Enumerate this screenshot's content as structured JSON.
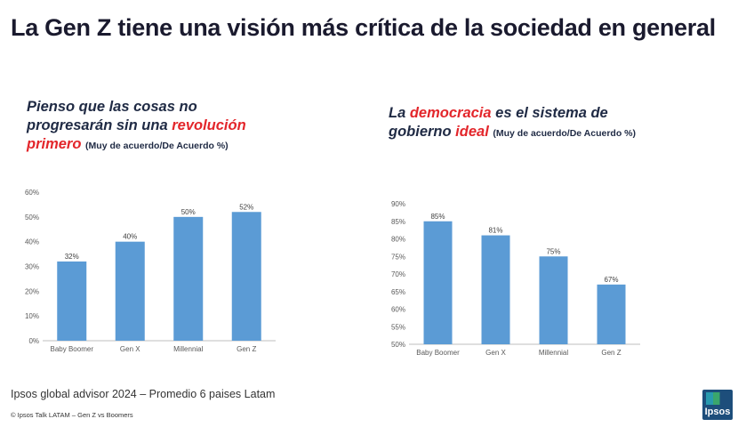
{
  "header": {
    "title": "La Gen Z tiene una visión más crítica de la sociedad en general"
  },
  "charts_meta": [
    {
      "title_parts": [
        {
          "text": "Pienso que las cosas no progresarán sin una ",
          "hl": false
        },
        {
          "text": "revolución primero",
          "hl": true
        },
        {
          "text": " ",
          "hl": false
        }
      ],
      "subtitle": "(Muy de acuerdo/De Acuerdo %)"
    },
    {
      "title_parts": [
        {
          "text": "La ",
          "hl": false
        },
        {
          "text": "democracia",
          "hl": true
        },
        {
          "text": " es el sistema de gobierno ",
          "hl": false
        },
        {
          "text": "ideal",
          "hl": true
        },
        {
          "text": " ",
          "hl": false
        }
      ],
      "subtitle": "(Muy de acuerdo/De Acuerdo %)"
    }
  ],
  "chart_data": [
    {
      "type": "bar",
      "title": "Pienso que las cosas no progresarán sin una revolución primero",
      "categories": [
        "Baby Boomer",
        "Gen X",
        "Millennial",
        "Gen Z"
      ],
      "values": [
        32,
        40,
        50,
        52
      ],
      "data_labels": [
        "32%",
        "40%",
        "50%",
        "52%"
      ],
      "ylim": [
        0,
        60
      ],
      "yticks": [
        0,
        10,
        20,
        30,
        40,
        50,
        60
      ],
      "ytick_labels": [
        "0%",
        "10%",
        "20%",
        "30%",
        "40%",
        "50%",
        "60%"
      ],
      "bar_color": "#5b9bd5",
      "grid": false
    },
    {
      "type": "bar",
      "title": "La democracia es el sistema de gobierno ideal",
      "categories": [
        "Baby Boomer",
        "Gen X",
        "Millennial",
        "Gen Z"
      ],
      "values": [
        85,
        81,
        75,
        67
      ],
      "data_labels": [
        "85%",
        "81%",
        "75%",
        "67%"
      ],
      "ylim": [
        50,
        90
      ],
      "yticks": [
        50,
        55,
        60,
        65,
        70,
        75,
        80,
        85,
        90
      ],
      "ytick_labels": [
        "50%",
        "55%",
        "60%",
        "65%",
        "70%",
        "75%",
        "80%",
        "85%",
        "90%"
      ],
      "bar_color": "#5b9bd5",
      "grid": false
    }
  ],
  "footer": {
    "source": "Ipsos global advisor 2024 – Promedio 6 paises Latam",
    "copyright": "© Ipsos Talk LATAM – Gen Z vs Boomers",
    "logo_text": "Ipsos"
  }
}
